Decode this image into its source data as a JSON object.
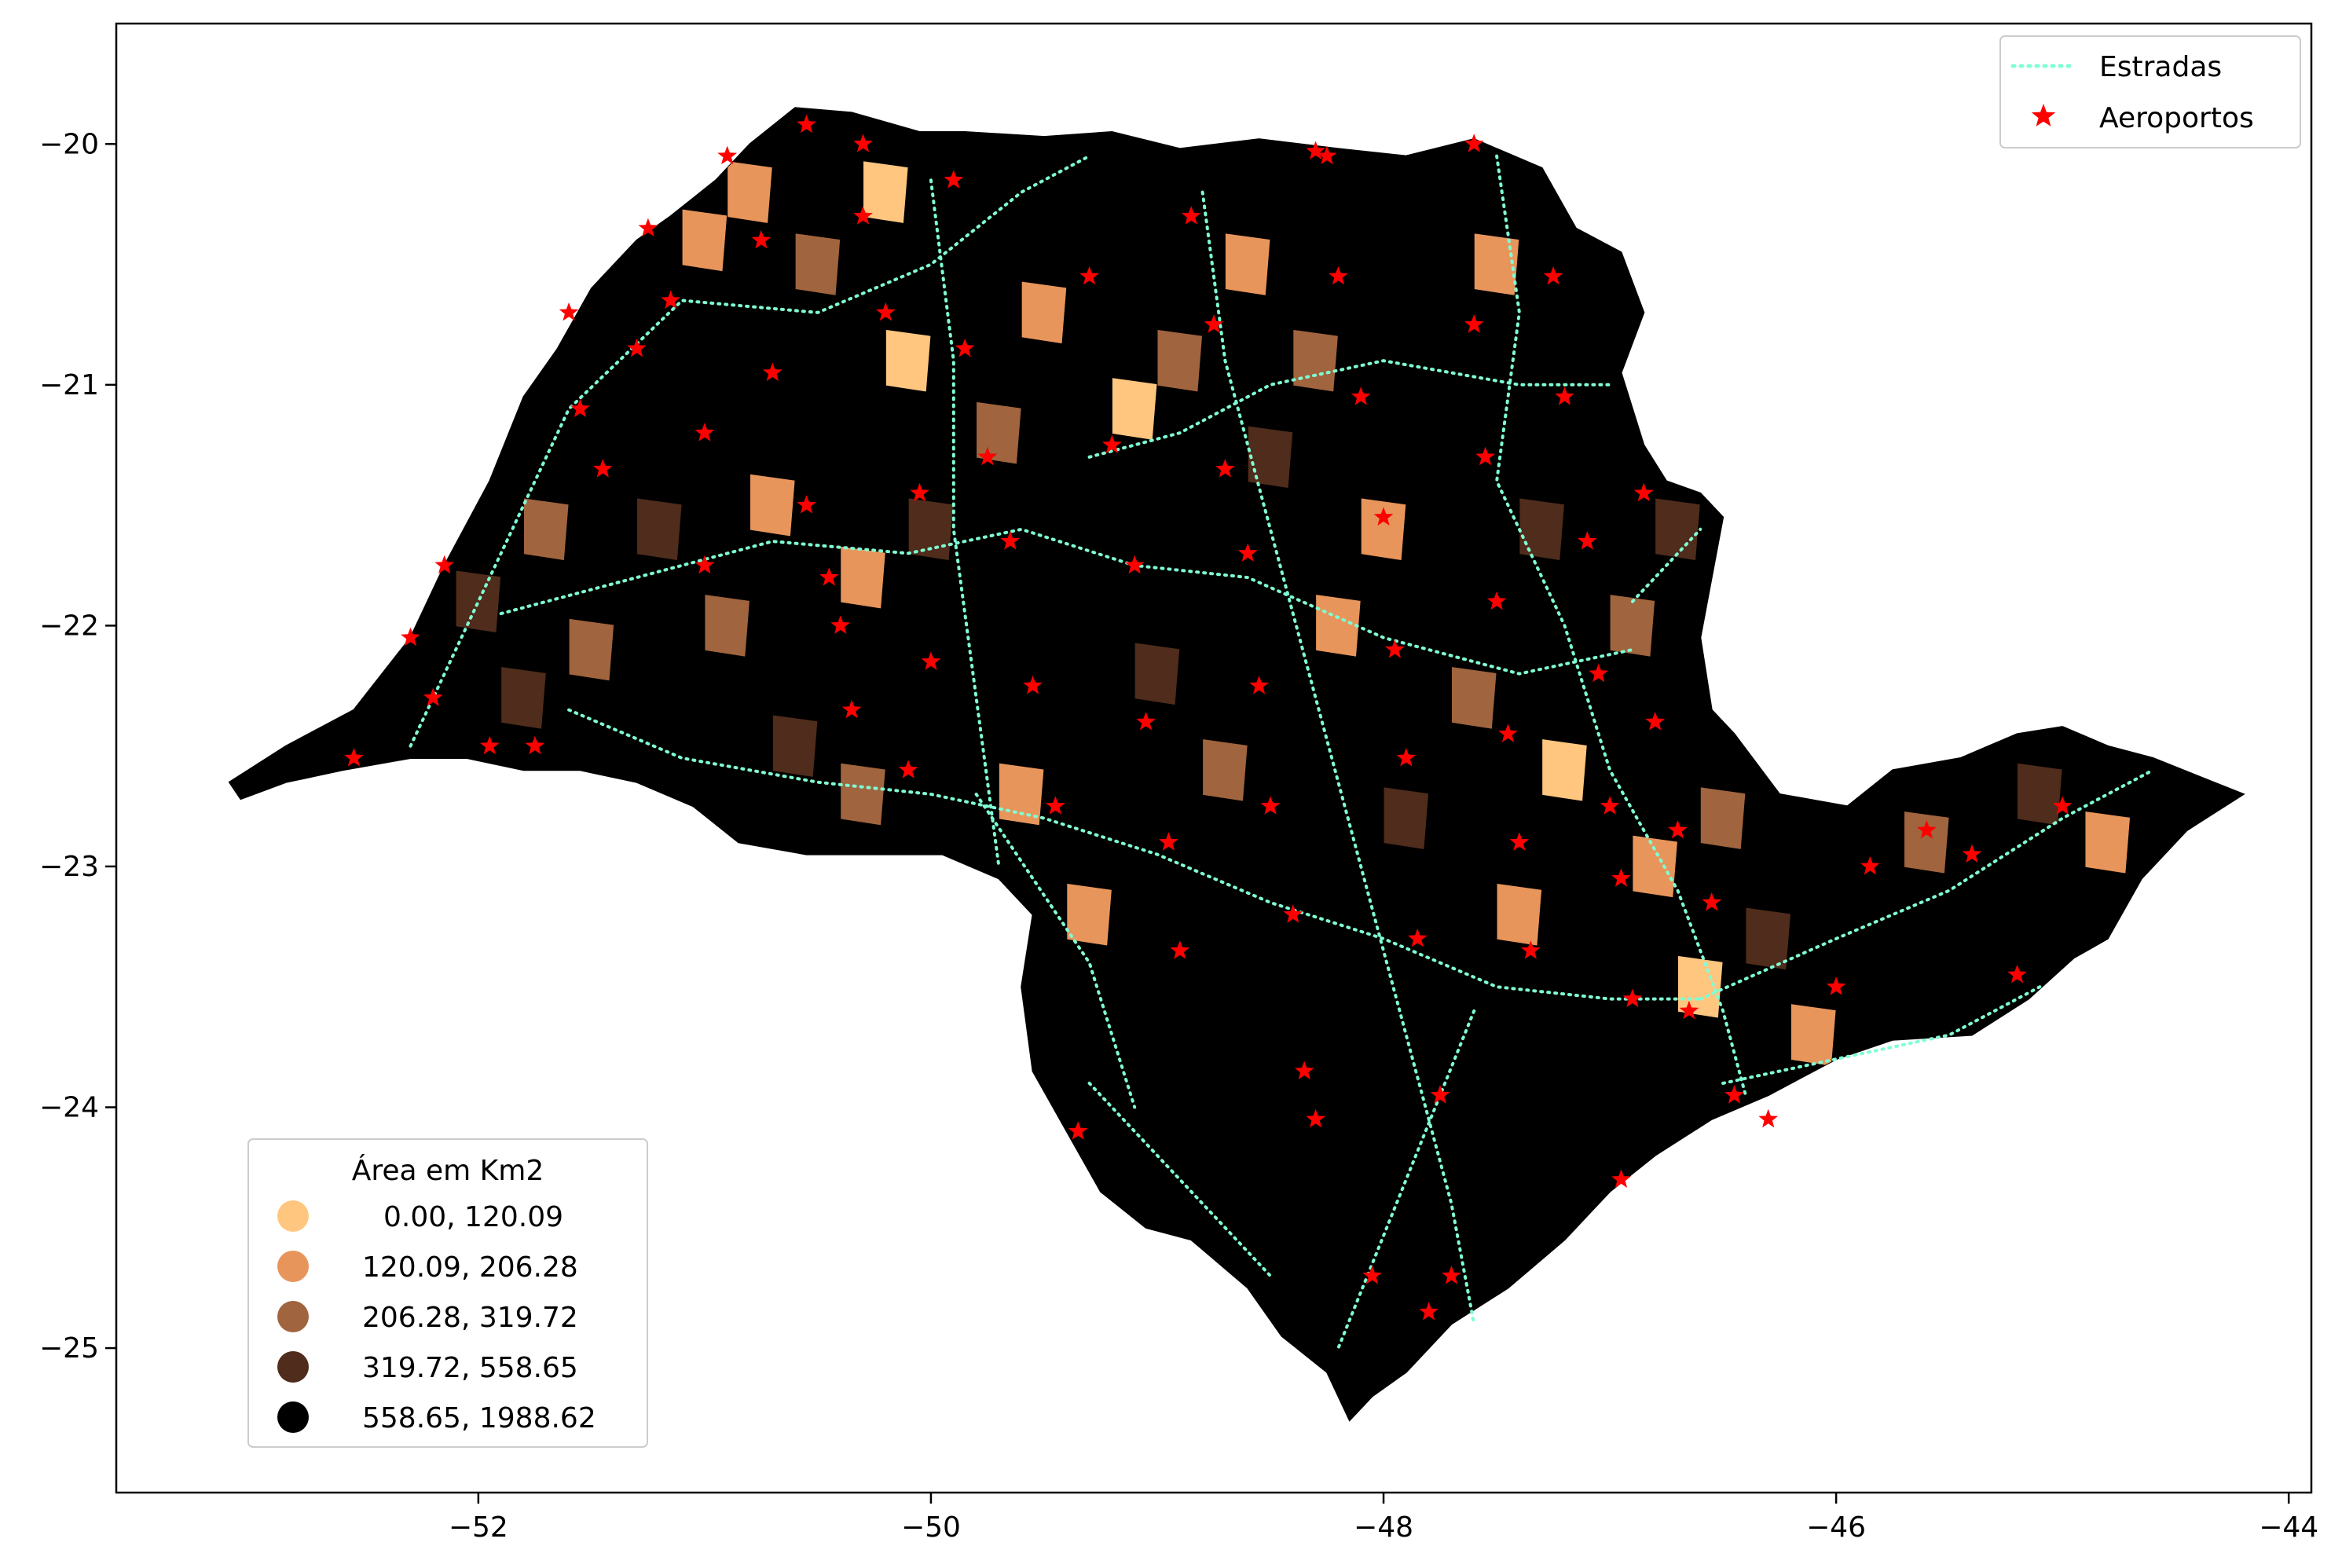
{
  "chart_data": {
    "type": "choropleth-map",
    "xlim": [
      -53.6,
      -43.9
    ],
    "ylim": [
      -25.6,
      -19.5
    ],
    "x_ticks": [
      -52,
      -50,
      -48,
      -46,
      -44
    ],
    "y_ticks": [
      -20,
      -21,
      -22,
      -23,
      -24,
      -25
    ],
    "x_tick_labels": [
      "−52",
      "−50",
      "−48",
      "−46",
      "−44"
    ],
    "y_tick_labels": [
      "−20",
      "−21",
      "−22",
      "−23",
      "−24",
      "−25"
    ],
    "grid": false,
    "legend_top": {
      "placement": "top-right",
      "entries": [
        {
          "label": "Estradas",
          "kind": "line",
          "color": "#7fffd4"
        },
        {
          "label": "Aeroportos",
          "kind": "star",
          "color": "#ff0000"
        }
      ]
    },
    "legend_classes": {
      "placement": "lower-left",
      "title": "Área em Km2",
      "entries": [
        {
          "label": "0.00,  120.09",
          "color": "#ffc680"
        },
        {
          "label": "120.09,  206.28",
          "color": "#e8955c"
        },
        {
          "label": "206.28,  319.72",
          "color": "#a0643e"
        },
        {
          "label": "319.72,  558.65",
          "color": "#4f2c1b"
        },
        {
          "label": "558.65, 1988.62",
          "color": "#000000"
        }
      ]
    },
    "state_outline": [
      [
        -53.1,
        -22.65
      ],
      [
        -52.85,
        -22.5
      ],
      [
        -52.55,
        -22.35
      ],
      [
        -52.3,
        -22.05
      ],
      [
        -52.15,
        -21.75
      ],
      [
        -51.95,
        -21.4
      ],
      [
        -51.8,
        -21.05
      ],
      [
        -51.65,
        -20.85
      ],
      [
        -51.5,
        -20.6
      ],
      [
        -51.3,
        -20.4
      ],
      [
        -51.15,
        -20.3
      ],
      [
        -50.95,
        -20.15
      ],
      [
        -50.8,
        -20.0
      ],
      [
        -50.6,
        -19.85
      ],
      [
        -50.35,
        -19.87
      ],
      [
        -50.05,
        -19.95
      ],
      [
        -49.85,
        -19.95
      ],
      [
        -49.5,
        -19.97
      ],
      [
        -49.2,
        -19.95
      ],
      [
        -48.9,
        -20.02
      ],
      [
        -48.55,
        -19.98
      ],
      [
        -48.2,
        -20.02
      ],
      [
        -47.9,
        -20.05
      ],
      [
        -47.6,
        -19.98
      ],
      [
        -47.3,
        -20.1
      ],
      [
        -47.15,
        -20.35
      ],
      [
        -46.95,
        -20.45
      ],
      [
        -46.85,
        -20.7
      ],
      [
        -46.95,
        -20.95
      ],
      [
        -46.85,
        -21.25
      ],
      [
        -46.75,
        -21.4
      ],
      [
        -46.6,
        -21.45
      ],
      [
        -46.5,
        -21.55
      ],
      [
        -46.55,
        -21.8
      ],
      [
        -46.6,
        -22.05
      ],
      [
        -46.55,
        -22.35
      ],
      [
        -46.45,
        -22.45
      ],
      [
        -46.25,
        -22.7
      ],
      [
        -45.95,
        -22.75
      ],
      [
        -45.75,
        -22.6
      ],
      [
        -45.45,
        -22.55
      ],
      [
        -45.2,
        -22.45
      ],
      [
        -45.0,
        -22.42
      ],
      [
        -44.8,
        -22.5
      ],
      [
        -44.6,
        -22.55
      ],
      [
        -44.2,
        -22.7
      ],
      [
        -44.45,
        -22.85
      ],
      [
        -44.65,
        -23.05
      ],
      [
        -44.8,
        -23.3
      ],
      [
        -44.95,
        -23.38
      ],
      [
        -45.15,
        -23.55
      ],
      [
        -45.4,
        -23.7
      ],
      [
        -45.75,
        -23.72
      ],
      [
        -46.0,
        -23.8
      ],
      [
        -46.3,
        -23.95
      ],
      [
        -46.55,
        -24.05
      ],
      [
        -46.8,
        -24.2
      ],
      [
        -47.0,
        -24.35
      ],
      [
        -47.2,
        -24.55
      ],
      [
        -47.45,
        -24.75
      ],
      [
        -47.7,
        -24.9
      ],
      [
        -47.9,
        -25.1
      ],
      [
        -48.05,
        -25.2
      ],
      [
        -48.15,
        -25.3
      ],
      [
        -48.25,
        -25.1
      ],
      [
        -48.45,
        -24.95
      ],
      [
        -48.6,
        -24.75
      ],
      [
        -48.85,
        -24.55
      ],
      [
        -49.05,
        -24.5
      ],
      [
        -49.25,
        -24.35
      ],
      [
        -49.4,
        -24.1
      ],
      [
        -49.55,
        -23.85
      ],
      [
        -49.6,
        -23.5
      ],
      [
        -49.55,
        -23.2
      ],
      [
        -49.7,
        -23.05
      ],
      [
        -49.95,
        -22.95
      ],
      [
        -50.25,
        -22.95
      ],
      [
        -50.55,
        -22.95
      ],
      [
        -50.85,
        -22.9
      ],
      [
        -51.05,
        -22.75
      ],
      [
        -51.3,
        -22.65
      ],
      [
        -51.55,
        -22.6
      ],
      [
        -51.8,
        -22.6
      ],
      [
        -52.05,
        -22.55
      ],
      [
        -52.3,
        -22.55
      ],
      [
        -52.6,
        -22.6
      ],
      [
        -52.85,
        -22.65
      ],
      [
        -53.05,
        -22.72
      ]
    ],
    "region_cells": [
      {
        "lon": -52.6,
        "lat": -22.4,
        "class": 4
      },
      {
        "lon": -52.2,
        "lat": -22.2,
        "class": 4
      },
      {
        "lon": -52.0,
        "lat": -21.9,
        "class": 3
      },
      {
        "lon": -51.8,
        "lat": -22.3,
        "class": 3
      },
      {
        "lon": -51.7,
        "lat": -21.6,
        "class": 2
      },
      {
        "lon": -51.5,
        "lat": -21.2,
        "class": 4
      },
      {
        "lon": -51.5,
        "lat": -22.1,
        "class": 2
      },
      {
        "lon": -51.3,
        "lat": -20.8,
        "class": 4
      },
      {
        "lon": -51.2,
        "lat": -21.6,
        "class": 3
      },
      {
        "lon": -51.2,
        "lat": -22.4,
        "class": 4
      },
      {
        "lon": -51.0,
        "lat": -20.4,
        "class": 1
      },
      {
        "lon": -51.0,
        "lat": -21.1,
        "class": 4
      },
      {
        "lon": -50.9,
        "lat": -22.0,
        "class": 2
      },
      {
        "lon": -50.8,
        "lat": -20.2,
        "class": 1
      },
      {
        "lon": -50.7,
        "lat": -21.5,
        "class": 1
      },
      {
        "lon": -50.6,
        "lat": -22.5,
        "class": 3
      },
      {
        "lon": -50.5,
        "lat": -20.5,
        "class": 2
      },
      {
        "lon": -50.4,
        "lat": -21.2,
        "class": 4
      },
      {
        "lon": -50.3,
        "lat": -21.8,
        "class": 1
      },
      {
        "lon": -50.3,
        "lat": -22.7,
        "class": 2
      },
      {
        "lon": -50.2,
        "lat": -20.2,
        "class": 0
      },
      {
        "lon": -50.1,
        "lat": -20.9,
        "class": 0
      },
      {
        "lon": -50.0,
        "lat": -21.6,
        "class": 3
      },
      {
        "lon": -49.9,
        "lat": -22.3,
        "class": 4
      },
      {
        "lon": -49.8,
        "lat": -20.4,
        "class": 4
      },
      {
        "lon": -49.7,
        "lat": -21.2,
        "class": 2
      },
      {
        "lon": -49.6,
        "lat": -22.7,
        "class": 1
      },
      {
        "lon": -49.5,
        "lat": -20.7,
        "class": 1
      },
      {
        "lon": -49.4,
        "lat": -21.7,
        "class": 4
      },
      {
        "lon": -49.3,
        "lat": -23.2,
        "class": 1
      },
      {
        "lon": -49.2,
        "lat": -20.3,
        "class": 4
      },
      {
        "lon": -49.1,
        "lat": -21.1,
        "class": 0
      },
      {
        "lon": -49.0,
        "lat": -22.2,
        "class": 3
      },
      {
        "lon": -49.0,
        "lat": -23.8,
        "class": 4
      },
      {
        "lon": -48.9,
        "lat": -20.9,
        "class": 2
      },
      {
        "lon": -48.8,
        "lat": -21.6,
        "class": 4
      },
      {
        "lon": -48.7,
        "lat": -22.6,
        "class": 2
      },
      {
        "lon": -48.6,
        "lat": -20.5,
        "class": 1
      },
      {
        "lon": -48.5,
        "lat": -21.3,
        "class": 3
      },
      {
        "lon": -48.5,
        "lat": -23.2,
        "class": 4
      },
      {
        "lon": -48.4,
        "lat": -24.3,
        "class": 4
      },
      {
        "lon": -48.3,
        "lat": -20.9,
        "class": 2
      },
      {
        "lon": -48.2,
        "lat": -22.0,
        "class": 1
      },
      {
        "lon": -48.1,
        "lat": -23.6,
        "class": 4
      },
      {
        "lon": -48.0,
        "lat": -20.3,
        "class": 4
      },
      {
        "lon": -48.0,
        "lat": -21.6,
        "class": 1
      },
      {
        "lon": -47.9,
        "lat": -22.8,
        "class": 3
      },
      {
        "lon": -47.8,
        "lat": -24.6,
        "class": 4
      },
      {
        "lon": -47.7,
        "lat": -21.1,
        "class": 4
      },
      {
        "lon": -47.6,
        "lat": -22.3,
        "class": 2
      },
      {
        "lon": -47.5,
        "lat": -20.5,
        "class": 1
      },
      {
        "lon": -47.4,
        "lat": -23.2,
        "class": 1
      },
      {
        "lon": -47.3,
        "lat": -21.6,
        "class": 3
      },
      {
        "lon": -47.2,
        "lat": -22.6,
        "class": 0
      },
      {
        "lon": -47.1,
        "lat": -24.0,
        "class": 4
      },
      {
        "lon": -47.0,
        "lat": -20.9,
        "class": 4
      },
      {
        "lon": -46.9,
        "lat": -22.0,
        "class": 2
      },
      {
        "lon": -46.8,
        "lat": -23.0,
        "class": 1
      },
      {
        "lon": -46.7,
        "lat": -21.6,
        "class": 3
      },
      {
        "lon": -46.6,
        "lat": -23.5,
        "class": 0
      },
      {
        "lon": -46.5,
        "lat": -22.8,
        "class": 2
      },
      {
        "lon": -46.3,
        "lat": -23.3,
        "class": 3
      },
      {
        "lon": -46.1,
        "lat": -23.7,
        "class": 1
      },
      {
        "lon": -45.9,
        "lat": -23.1,
        "class": 4
      },
      {
        "lon": -45.6,
        "lat": -22.9,
        "class": 2
      },
      {
        "lon": -45.4,
        "lat": -23.4,
        "class": 4
      },
      {
        "lon": -45.1,
        "lat": -22.7,
        "class": 3
      },
      {
        "lon": -44.8,
        "lat": -22.9,
        "class": 1
      },
      {
        "lon": -44.5,
        "lat": -22.7,
        "class": 4
      }
    ],
    "roads": [
      [
        [
          -52.3,
          -22.5
        ],
        [
          -52.0,
          -21.9
        ],
        [
          -51.6,
          -21.1
        ],
        [
          -51.1,
          -20.65
        ],
        [
          -50.5,
          -20.7
        ],
        [
          -50.0,
          -20.5
        ],
        [
          -49.6,
          -20.2
        ],
        [
          -49.3,
          -20.05
        ]
      ],
      [
        [
          -51.9,
          -21.95
        ],
        [
          -51.3,
          -21.8
        ],
        [
          -50.7,
          -21.65
        ],
        [
          -50.1,
          -21.7
        ],
        [
          -49.6,
          -21.6
        ],
        [
          -49.1,
          -21.75
        ],
        [
          -48.6,
          -21.8
        ],
        [
          -48.0,
          -22.05
        ],
        [
          -47.4,
          -22.2
        ],
        [
          -46.9,
          -22.1
        ]
      ],
      [
        [
          -51.6,
          -22.35
        ],
        [
          -51.1,
          -22.55
        ],
        [
          -50.5,
          -22.65
        ],
        [
          -50.0,
          -22.7
        ],
        [
          -49.5,
          -22.8
        ],
        [
          -49.0,
          -22.95
        ],
        [
          -48.5,
          -23.15
        ],
        [
          -48.0,
          -23.3
        ],
        [
          -47.5,
          -23.5
        ],
        [
          -47.0,
          -23.55
        ],
        [
          -46.6,
          -23.55
        ]
      ],
      [
        [
          -50.0,
          -20.15
        ],
        [
          -49.9,
          -20.9
        ],
        [
          -49.9,
          -21.6
        ],
        [
          -49.8,
          -22.3
        ],
        [
          -49.7,
          -23.0
        ]
      ],
      [
        [
          -48.8,
          -20.2
        ],
        [
          -48.7,
          -20.9
        ],
        [
          -48.5,
          -21.6
        ],
        [
          -48.3,
          -22.3
        ],
        [
          -48.1,
          -23.0
        ],
        [
          -47.9,
          -23.7
        ],
        [
          -47.7,
          -24.4
        ],
        [
          -47.6,
          -24.9
        ]
      ],
      [
        [
          -47.5,
          -20.05
        ],
        [
          -47.4,
          -20.7
        ],
        [
          -47.5,
          -21.4
        ],
        [
          -47.2,
          -22.0
        ],
        [
          -47.0,
          -22.6
        ],
        [
          -46.7,
          -23.1
        ],
        [
          -46.5,
          -23.6
        ],
        [
          -46.4,
          -23.95
        ]
      ],
      [
        [
          -46.6,
          -23.55
        ],
        [
          -46.0,
          -23.3
        ],
        [
          -45.5,
          -23.1
        ],
        [
          -45.0,
          -22.8
        ],
        [
          -44.6,
          -22.6
        ]
      ],
      [
        [
          -46.5,
          -23.9
        ],
        [
          -46.0,
          -23.8
        ],
        [
          -45.5,
          -23.7
        ],
        [
          -45.1,
          -23.5
        ]
      ],
      [
        [
          -49.3,
          -23.9
        ],
        [
          -48.9,
          -24.3
        ],
        [
          -48.5,
          -24.7
        ]
      ],
      [
        [
          -49.8,
          -22.7
        ],
        [
          -49.3,
          -23.4
        ],
        [
          -49.1,
          -24.0
        ]
      ],
      [
        [
          -47.6,
          -23.6
        ],
        [
          -47.9,
          -24.3
        ],
        [
          -48.2,
          -25.0
        ]
      ],
      [
        [
          -49.3,
          -21.3
        ],
        [
          -48.9,
          -21.2
        ],
        [
          -48.5,
          -21.0
        ],
        [
          -48.0,
          -20.9
        ],
        [
          -47.4,
          -21.0
        ],
        [
          -47.0,
          -21.0
        ]
      ],
      [
        [
          -46.9,
          -21.9
        ],
        [
          -46.6,
          -21.6
        ]
      ]
    ],
    "airports": [
      [
        -52.55,
        -22.55
      ],
      [
        -52.3,
        -22.05
      ],
      [
        -52.15,
        -21.75
      ],
      [
        -52.2,
        -22.3
      ],
      [
        -51.95,
        -22.5
      ],
      [
        -51.75,
        -22.5
      ],
      [
        -51.6,
        -20.7
      ],
      [
        -51.55,
        -21.1
      ],
      [
        -51.45,
        -21.35
      ],
      [
        -51.3,
        -20.85
      ],
      [
        -51.15,
        -20.65
      ],
      [
        -51.0,
        -21.2
      ],
      [
        -51.0,
        -21.75
      ],
      [
        -50.9,
        -20.05
      ],
      [
        -50.75,
        -20.4
      ],
      [
        -50.7,
        -20.95
      ],
      [
        -50.55,
        -21.5
      ],
      [
        -50.45,
        -21.8
      ],
      [
        -50.4,
        -22.0
      ],
      [
        -50.35,
        -22.35
      ],
      [
        -50.3,
        -20.3
      ],
      [
        -50.2,
        -20.7
      ],
      [
        -50.05,
        -21.45
      ],
      [
        -50.0,
        -22.15
      ],
      [
        -49.9,
        -20.15
      ],
      [
        -49.85,
        -20.85
      ],
      [
        -49.75,
        -21.3
      ],
      [
        -49.65,
        -21.65
      ],
      [
        -49.55,
        -22.25
      ],
      [
        -49.45,
        -22.75
      ],
      [
        -49.3,
        -20.55
      ],
      [
        -49.2,
        -21.25
      ],
      [
        -49.1,
        -21.75
      ],
      [
        -49.05,
        -22.4
      ],
      [
        -48.95,
        -22.9
      ],
      [
        -48.9,
        -23.35
      ],
      [
        -48.85,
        -20.3
      ],
      [
        -48.75,
        -20.75
      ],
      [
        -48.7,
        -21.35
      ],
      [
        -48.6,
        -21.7
      ],
      [
        -48.55,
        -22.25
      ],
      [
        -48.5,
        -22.75
      ],
      [
        -48.4,
        -23.2
      ],
      [
        -48.35,
        -23.85
      ],
      [
        -48.3,
        -24.05
      ],
      [
        -48.25,
        -20.05
      ],
      [
        -48.2,
        -20.55
      ],
      [
        -48.1,
        -21.05
      ],
      [
        -48.0,
        -21.55
      ],
      [
        -47.95,
        -22.1
      ],
      [
        -47.9,
        -22.55
      ],
      [
        -47.85,
        -23.3
      ],
      [
        -47.75,
        -23.95
      ],
      [
        -47.7,
        -24.7
      ],
      [
        -47.6,
        -20.75
      ],
      [
        -47.55,
        -21.3
      ],
      [
        -47.5,
        -21.9
      ],
      [
        -47.45,
        -22.45
      ],
      [
        -47.4,
        -22.9
      ],
      [
        -47.35,
        -23.35
      ],
      [
        -47.25,
        -20.55
      ],
      [
        -47.2,
        -21.05
      ],
      [
        -47.1,
        -21.65
      ],
      [
        -47.05,
        -22.2
      ],
      [
        -47.0,
        -22.75
      ],
      [
        -46.95,
        -23.05
      ],
      [
        -46.9,
        -23.55
      ],
      [
        -46.85,
        -21.45
      ],
      [
        -46.8,
        -22.4
      ],
      [
        -46.7,
        -22.85
      ],
      [
        -46.65,
        -23.6
      ],
      [
        -46.55,
        -23.15
      ],
      [
        -46.45,
        -23.95
      ],
      [
        -46.3,
        -24.05
      ],
      [
        -46.0,
        -23.5
      ],
      [
        -45.85,
        -23.0
      ],
      [
        -45.6,
        -22.85
      ],
      [
        -45.4,
        -22.95
      ],
      [
        -45.2,
        -23.45
      ],
      [
        -45.0,
        -22.75
      ],
      [
        -47.6,
        -20.0
      ],
      [
        -48.3,
        -20.03
      ],
      [
        -47.8,
        -24.85
      ],
      [
        -48.05,
        -24.7
      ],
      [
        -49.35,
        -24.1
      ],
      [
        -50.1,
        -22.6
      ],
      [
        -51.25,
        -20.35
      ],
      [
        -50.55,
        -19.92
      ],
      [
        -50.3,
        -20.0
      ],
      [
        -46.95,
        -24.3
      ]
    ]
  }
}
